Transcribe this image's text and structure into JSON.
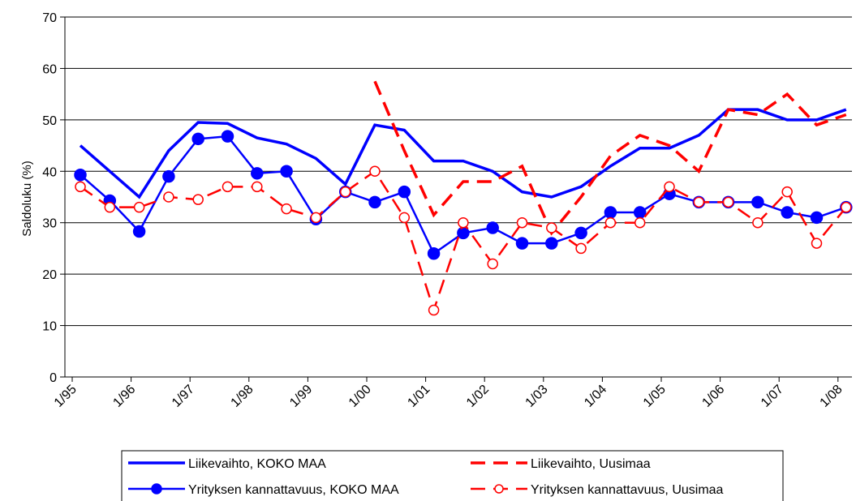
{
  "chart_data": {
    "type": "line",
    "y_label": "Saldoluku (%)",
    "categories": [
      "1/95",
      null,
      "1/96",
      null,
      "1/97",
      null,
      "1/98",
      null,
      "1/99",
      null,
      "1/00",
      null,
      "1/01",
      null,
      "1/02",
      null,
      "1/03",
      null,
      "1/04",
      null,
      "1/05",
      null,
      "1/06",
      null,
      "1/07",
      null,
      "1/08"
    ],
    "ylim": [
      0,
      70
    ],
    "yticks": [
      0,
      10,
      20,
      30,
      40,
      50,
      60,
      70
    ],
    "grid": true,
    "legend": "bottom",
    "series": [
      {
        "name": "Liikevaihto, KOKO MAA",
        "color": "#0000ff",
        "line_style": "solid",
        "marker": "none",
        "values": [
          45,
          40,
          35,
          44,
          49.5,
          49.3,
          46.5,
          45.3,
          42.5,
          37.5,
          49,
          48,
          42,
          42,
          40,
          36,
          35,
          37,
          41,
          44.5,
          44.5,
          47,
          52,
          52,
          50,
          50,
          52
        ]
      },
      {
        "name": "Liikevaihto, Uusimaa",
        "color": "#ff0000",
        "line_style": "dashed",
        "marker": "none",
        "values": [
          null,
          null,
          null,
          null,
          null,
          null,
          null,
          null,
          null,
          null,
          57.5,
          44,
          31.5,
          38,
          38,
          41,
          28,
          35,
          43,
          47,
          45,
          40,
          52,
          51,
          55,
          49,
          51
        ]
      },
      {
        "name": "Yrityksen kannattavuus, KOKO MAA",
        "color": "#0000ff",
        "line_style": "solid",
        "marker": "circle-filled",
        "values": [
          39.3,
          34.3,
          28.3,
          39,
          46.3,
          46.8,
          39.6,
          40,
          30.7,
          36,
          34,
          36,
          24,
          28,
          29,
          26,
          26,
          28,
          32,
          32,
          35.6,
          34,
          34,
          34,
          32,
          31,
          33
        ]
      },
      {
        "name": "Yrityksen kannattavuus, Uusimaa",
        "color": "#ff0000",
        "line_style": "dashed",
        "marker": "circle-open",
        "values": [
          37,
          33,
          33,
          35,
          34.5,
          37,
          37,
          32.7,
          31,
          36,
          40,
          31,
          13,
          30,
          22,
          30,
          29,
          25,
          30,
          30,
          37,
          34,
          34,
          30,
          36,
          26,
          33
        ]
      }
    ]
  }
}
